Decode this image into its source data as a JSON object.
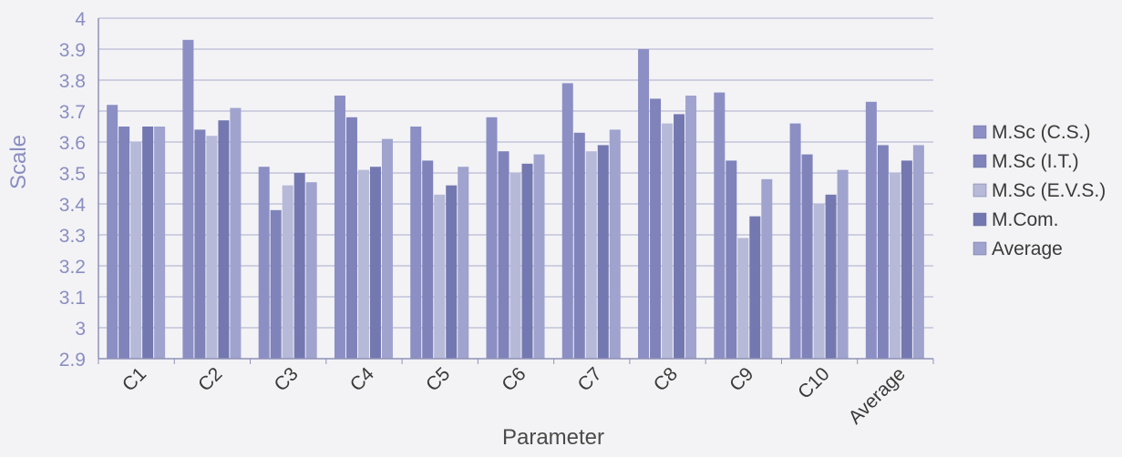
{
  "chart_data": {
    "type": "bar",
    "xlabel": "Parameter",
    "ylabel": "Scale",
    "ylim": [
      2.9,
      4.0
    ],
    "yticks": [
      "2.9",
      "3",
      "3.1",
      "3.2",
      "3.3",
      "3.4",
      "3.5",
      "3.6",
      "3.7",
      "3.8",
      "3.9",
      "4"
    ],
    "grid": true,
    "legend_position": "right",
    "categories": [
      "C1",
      "C2",
      "C3",
      "C4",
      "C5",
      "C6",
      "C7",
      "C8",
      "C9",
      "C10",
      "Average"
    ],
    "series": [
      {
        "name": "M.Sc (C.S.)",
        "color": "#8b8fc4",
        "values": [
          3.72,
          3.93,
          3.52,
          3.75,
          3.65,
          3.68,
          3.79,
          3.9,
          3.76,
          3.66,
          3.73
        ]
      },
      {
        "name": "M.Sc (I.T.)",
        "color": "#7f83ba",
        "values": [
          3.65,
          3.64,
          3.38,
          3.68,
          3.54,
          3.57,
          3.63,
          3.74,
          3.54,
          3.56,
          3.59
        ]
      },
      {
        "name": "M.Sc (E.V.S.)",
        "color": "#b7b9d8",
        "values": [
          3.6,
          3.62,
          3.46,
          3.51,
          3.43,
          3.5,
          3.57,
          3.66,
          3.29,
          3.4,
          3.5
        ]
      },
      {
        "name": "M.Com.",
        "color": "#7478b0",
        "values": [
          3.65,
          3.67,
          3.5,
          3.52,
          3.46,
          3.53,
          3.59,
          3.69,
          3.36,
          3.43,
          3.54
        ]
      },
      {
        "name": "Average",
        "color": "#9fa3cd",
        "values": [
          3.65,
          3.71,
          3.47,
          3.61,
          3.52,
          3.56,
          3.64,
          3.75,
          3.48,
          3.51,
          3.59
        ]
      }
    ]
  }
}
